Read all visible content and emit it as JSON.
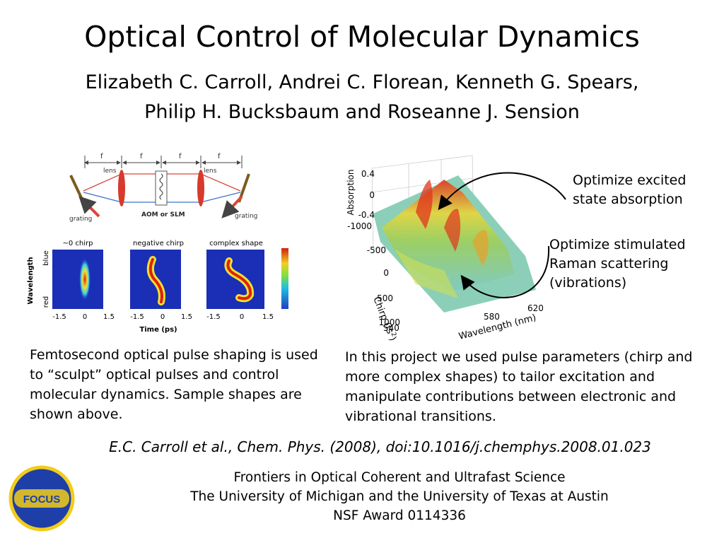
{
  "slide": {
    "title": "Optical Control of Molecular Dynamics",
    "authors_line1": "Elizabeth C. Carroll, Andrei C. Florean, Kenneth G. Spears,",
    "authors_line2": "Philip H. Bucksbaum and Roseanne J. Sension",
    "left_caption": "Femtosecond optical pulse shaping is used to “sculpt” optical pulses and control molecular dynamics. Sample shapes are shown above.",
    "right_caption": "In this project we used pulse parameters (chirp and more complex shapes) to tailor excitation and manipulate contributions between electronic and vibrational transitions.",
    "citation": "E.C. Carroll et al., Chem. Phys. (2008), doi:10.1016/j.chemphys.2008.01.023",
    "footer_line1": "Frontiers in Optical Coherent and Ultrafast Science",
    "footer_line2": "The University of Michigan and the  University of Texas at Austin",
    "footer_line3": "NSF Award 0114336",
    "logo_text": "FOCUS"
  },
  "shaper_diagram": {
    "focal_labels": [
      "f",
      "f",
      "f",
      "f"
    ],
    "lens_label_left": "lens",
    "lens_label_right": "lens",
    "grating_left": "grating",
    "grating_right": "grating",
    "modulator_label": "AOM or SLM"
  },
  "pulse_panels": {
    "panel_titles": [
      "~0 chirp",
      "negative chirp",
      "complex shape"
    ],
    "y_axis_label": "Wavelength",
    "y_top_label": "blue",
    "y_bottom_label": "red",
    "x_ticks": [
      "-1.5",
      "0",
      "1.5"
    ],
    "x_axis_label": "Time (ps)"
  },
  "surface_plot": {
    "absorption_label": "Absorption",
    "absorption_ticks": [
      "0.4",
      "0",
      "-0.4"
    ],
    "chirp_label": "Chirp (fs",
    "chirp_sup": "2",
    "chirp_close": ")",
    "chirp_ticks": [
      "-1000",
      "-500",
      "0",
      "500",
      "1000"
    ],
    "wavelength_label": "Wavelength (nm)",
    "wavelength_ticks": [
      "540",
      "580",
      "620"
    ]
  },
  "annotations": {
    "excited_line1": "Optimize excited",
    "excited_line2": "state absorption",
    "raman_line1": "Optimize stimulated",
    "raman_line2": "Raman scattering",
    "raman_line3": "(vibrations)"
  },
  "colors": {
    "logo_fill": "#1e3fa8",
    "logo_ring": "#f2cc1a",
    "beam_red": "#d94838",
    "beam_blue": "#3f73c7",
    "lens_red": "#d63a2c",
    "surface_green": "#9ecf5a",
    "surface_teal": "#7fc9c4"
  }
}
